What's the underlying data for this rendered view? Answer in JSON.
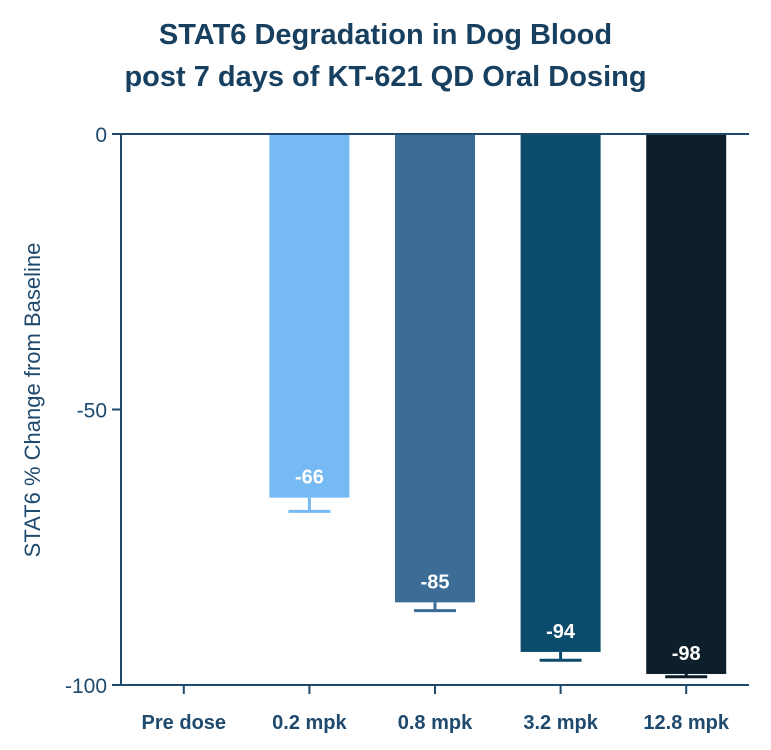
{
  "chart_data": {
    "type": "bar",
    "title": [
      "STAT6 Degradation in Dog Blood",
      "post 7 days of KT-621 QD Oral Dosing"
    ],
    "ylabel": "STAT6 % Change from Baseline",
    "xlabel": "",
    "ylim": [
      -100,
      0
    ],
    "yticks": [
      0,
      -50,
      -100
    ],
    "categories": [
      "Pre dose",
      "0.2 mpk",
      "0.8 mpk",
      "3.2 mpk",
      "12.8 mpk"
    ],
    "values": [
      0,
      -66,
      -85,
      -94,
      -98
    ],
    "error": [
      0,
      2.5,
      1.5,
      1.5,
      0.5
    ],
    "data_labels": [
      "",
      "-66",
      "-85",
      "-94",
      "-98"
    ],
    "colors": [
      "#ffffff",
      "#75baf2",
      "#3b6d97",
      "#0b4b6c",
      "#0c1f2b"
    ]
  }
}
